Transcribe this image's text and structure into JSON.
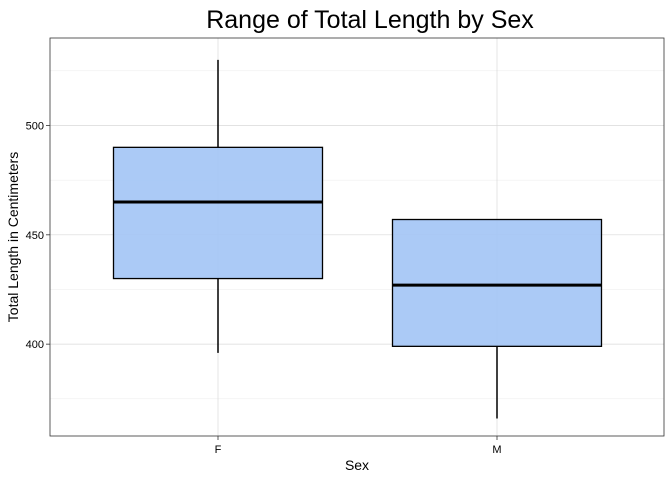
{
  "chart_data": {
    "type": "boxplot",
    "title": "Range of Total Length by Sex",
    "xlabel": "Sex",
    "ylabel": "Total Length in Centimeters",
    "categories": [
      "F",
      "M"
    ],
    "boxes": [
      {
        "category": "F",
        "min": 396,
        "q1": 430,
        "median": 465,
        "q3": 490,
        "max": 530
      },
      {
        "category": "M",
        "min": 366,
        "q1": 399,
        "median": 427,
        "q3": 457,
        "max": 457
      }
    ],
    "ylim": [
      358,
      540
    ],
    "yticks": [
      400,
      450,
      500
    ],
    "yticks_minor": [
      375,
      425,
      475,
      525
    ],
    "fill_color": "#a4c6f5",
    "grid": true,
    "legend": "none"
  }
}
